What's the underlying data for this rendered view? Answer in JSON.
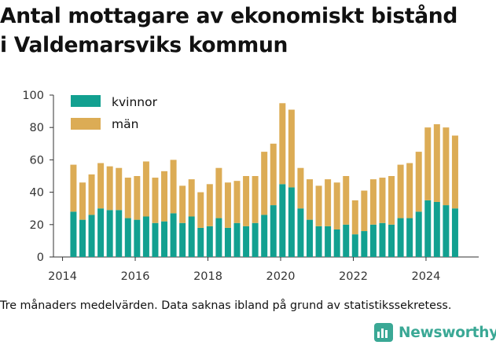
{
  "title": {
    "line1": "Antal mottagare av ekonomiskt bistånd",
    "line2": "i Valdemarsviks kommun"
  },
  "note": "Tre månaders medelvärden. Data saknas ibland på grund av statistikssekretess.",
  "brand": {
    "name": "Newsworthy",
    "icon": "newsworthy-logo-icon",
    "color": "#3aa895"
  },
  "colors": {
    "kvinnor": "#12a090",
    "man": "#dcac55",
    "axis": "#333333",
    "grid": "#e8e8e8"
  },
  "chart_data": {
    "type": "bar",
    "stacked": true,
    "title": "",
    "xlabel": "",
    "ylabel": "",
    "ylim": [
      0,
      100
    ],
    "yticks": [
      0,
      20,
      40,
      60,
      80,
      100
    ],
    "xlim": [
      2013.75,
      2025.45
    ],
    "xticks": [
      2014,
      2016,
      2018,
      2020,
      2022,
      2024
    ],
    "grid": false,
    "legend_position": "top-left",
    "x": [
      2014.3,
      2014.55,
      2014.8,
      2015.05,
      2015.3,
      2015.55,
      2015.8,
      2016.05,
      2016.3,
      2016.55,
      2016.8,
      2017.05,
      2017.3,
      2017.55,
      2017.8,
      2018.05,
      2018.3,
      2018.55,
      2018.8,
      2019.05,
      2019.3,
      2019.55,
      2019.8,
      2020.05,
      2020.3,
      2020.55,
      2020.8,
      2021.05,
      2021.3,
      2021.55,
      2021.8,
      2022.05,
      2022.3,
      2022.55,
      2022.8,
      2023.05,
      2023.3,
      2023.55,
      2023.8,
      2024.05,
      2024.3,
      2024.55,
      2024.8
    ],
    "series": [
      {
        "name": "kvinnor",
        "values": [
          28,
          23,
          26,
          30,
          29,
          29,
          24,
          23,
          25,
          21,
          22,
          27,
          21,
          25,
          18,
          19,
          24,
          18,
          21,
          19,
          21,
          26,
          32,
          45,
          43,
          30,
          23,
          19,
          19,
          17,
          20,
          14,
          16,
          20,
          21,
          20,
          24,
          24,
          28,
          35,
          34,
          32,
          30
        ]
      },
      {
        "name": "män",
        "values": [
          29,
          23,
          25,
          28,
          27,
          26,
          25,
          27,
          34,
          28,
          31,
          33,
          23,
          23,
          22,
          26,
          31,
          28,
          26,
          31,
          29,
          39,
          38,
          50,
          48,
          25,
          25,
          25,
          29,
          29,
          30,
          21,
          25,
          28,
          28,
          30,
          33,
          34,
          37,
          45,
          48,
          48,
          45
        ]
      }
    ]
  }
}
